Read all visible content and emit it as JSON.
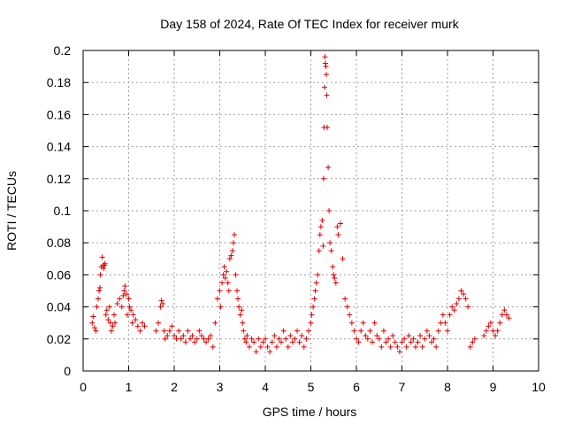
{
  "chart_data": {
    "type": "scatter",
    "title": "Day 158 of 2024, Rate Of TEC Index for receiver murk",
    "xlabel": "GPS time / hours",
    "ylabel": "ROTI / TECUs",
    "xlim": [
      0,
      10
    ],
    "ylim": [
      0,
      0.2
    ],
    "xticks": [
      0,
      1,
      2,
      3,
      4,
      5,
      6,
      7,
      8,
      9,
      10
    ],
    "yticks": [
      0,
      0.02,
      0.04,
      0.06,
      0.08,
      0.1,
      0.12,
      0.14,
      0.16,
      0.18,
      0.2
    ],
    "xtick_labels": [
      "0",
      "1",
      "2",
      "3",
      "4",
      "5",
      "6",
      "7",
      "8",
      "9",
      "10"
    ],
    "ytick_labels": [
      "0",
      "0.02",
      "0.04",
      "0.06",
      "0.08",
      "0.1",
      "0.12",
      "0.14",
      "0.16",
      "0.18",
      "0.2"
    ],
    "grid": true,
    "marker": "+",
    "color": "#e00000",
    "series": [
      {
        "name": "ROTI",
        "x": [
          0.2,
          0.22,
          0.25,
          0.28,
          0.3,
          0.33,
          0.35,
          0.37,
          0.38,
          0.4,
          0.42,
          0.44,
          0.45,
          0.47,
          0.48,
          0.5,
          0.52,
          0.55,
          0.58,
          0.6,
          0.62,
          0.65,
          0.68,
          0.7,
          0.75,
          0.8,
          0.85,
          0.88,
          0.9,
          0.92,
          0.95,
          0.97,
          1.0,
          1.02,
          1.05,
          1.08,
          1.1,
          1.15,
          1.2,
          1.25,
          1.3,
          1.35,
          1.6,
          1.65,
          1.7,
          1.72,
          1.75,
          1.78,
          1.8,
          1.85,
          1.9,
          1.95,
          2.0,
          2.05,
          2.1,
          2.15,
          2.2,
          2.25,
          2.3,
          2.35,
          2.4,
          2.45,
          2.5,
          2.55,
          2.6,
          2.65,
          2.7,
          2.75,
          2.8,
          2.85,
          2.9,
          2.95,
          3.0,
          3.02,
          3.05,
          3.08,
          3.1,
          3.12,
          3.15,
          3.18,
          3.2,
          3.22,
          3.25,
          3.28,
          3.3,
          3.32,
          3.35,
          3.38,
          3.4,
          3.42,
          3.45,
          3.48,
          3.5,
          3.52,
          3.55,
          3.58,
          3.6,
          3.65,
          3.7,
          3.75,
          3.8,
          3.85,
          3.9,
          3.95,
          4.0,
          4.05,
          4.1,
          4.15,
          4.2,
          4.25,
          4.3,
          4.35,
          4.4,
          4.45,
          4.5,
          4.55,
          4.6,
          4.65,
          4.7,
          4.75,
          4.8,
          4.85,
          4.9,
          4.95,
          5.0,
          5.02,
          5.05,
          5.08,
          5.1,
          5.12,
          5.15,
          5.18,
          5.2,
          5.22,
          5.25,
          5.27,
          5.28,
          5.29,
          5.3,
          5.31,
          5.32,
          5.33,
          5.34,
          5.35,
          5.36,
          5.38,
          5.4,
          5.42,
          5.45,
          5.48,
          5.5,
          5.52,
          5.55,
          5.58,
          5.6,
          5.65,
          5.7,
          5.75,
          5.8,
          5.85,
          5.9,
          5.95,
          6.0,
          6.05,
          6.1,
          6.15,
          6.2,
          6.25,
          6.3,
          6.35,
          6.4,
          6.45,
          6.5,
          6.55,
          6.6,
          6.65,
          6.7,
          6.75,
          6.8,
          6.85,
          6.9,
          6.95,
          7.0,
          7.05,
          7.1,
          7.15,
          7.2,
          7.25,
          7.3,
          7.35,
          7.4,
          7.45,
          7.5,
          7.55,
          7.6,
          7.65,
          7.7,
          7.75,
          7.8,
          7.85,
          7.9,
          7.95,
          8.0,
          8.05,
          8.1,
          8.15,
          8.2,
          8.25,
          8.3,
          8.35,
          8.4,
          8.45,
          8.5,
          8.55,
          8.6,
          8.8,
          8.85,
          8.9,
          8.95,
          9.0,
          9.05,
          9.1,
          9.15,
          9.2,
          9.25,
          9.3,
          9.35
        ],
        "y": [
          0.03,
          0.034,
          0.027,
          0.025,
          0.04,
          0.045,
          0.05,
          0.052,
          0.06,
          0.065,
          0.071,
          0.066,
          0.064,
          0.066,
          0.067,
          0.035,
          0.038,
          0.032,
          0.04,
          0.03,
          0.025,
          0.028,
          0.035,
          0.03,
          0.042,
          0.045,
          0.04,
          0.047,
          0.05,
          0.053,
          0.048,
          0.035,
          0.045,
          0.04,
          0.038,
          0.03,
          0.035,
          0.032,
          0.028,
          0.025,
          0.03,
          0.028,
          0.025,
          0.03,
          0.04,
          0.044,
          0.042,
          0.025,
          0.02,
          0.022,
          0.025,
          0.028,
          0.022,
          0.02,
          0.025,
          0.02,
          0.022,
          0.018,
          0.025,
          0.02,
          0.022,
          0.018,
          0.02,
          0.025,
          0.022,
          0.02,
          0.018,
          0.02,
          0.022,
          0.015,
          0.03,
          0.045,
          0.05,
          0.04,
          0.055,
          0.06,
          0.065,
          0.058,
          0.062,
          0.055,
          0.05,
          0.07,
          0.072,
          0.075,
          0.08,
          0.085,
          0.06,
          0.05,
          0.045,
          0.04,
          0.035,
          0.038,
          0.03,
          0.025,
          0.02,
          0.018,
          0.022,
          0.015,
          0.02,
          0.018,
          0.012,
          0.02,
          0.015,
          0.018,
          0.02,
          0.015,
          0.012,
          0.018,
          0.022,
          0.015,
          0.02,
          0.018,
          0.025,
          0.02,
          0.015,
          0.022,
          0.018,
          0.02,
          0.025,
          0.018,
          0.022,
          0.015,
          0.02,
          0.025,
          0.03,
          0.035,
          0.04,
          0.045,
          0.05,
          0.055,
          0.06,
          0.075,
          0.085,
          0.09,
          0.094,
          0.078,
          0.12,
          0.152,
          0.177,
          0.196,
          0.192,
          0.19,
          0.185,
          0.172,
          0.152,
          0.127,
          0.1,
          0.08,
          0.075,
          0.065,
          0.06,
          0.058,
          0.055,
          0.09,
          0.085,
          0.092,
          0.07,
          0.045,
          0.04,
          0.035,
          0.03,
          0.025,
          0.02,
          0.018,
          0.025,
          0.03,
          0.022,
          0.02,
          0.025,
          0.018,
          0.03,
          0.022,
          0.02,
          0.015,
          0.025,
          0.018,
          0.02,
          0.015,
          0.022,
          0.018,
          0.015,
          0.012,
          0.018,
          0.02,
          0.015,
          0.022,
          0.018,
          0.02,
          0.015,
          0.018,
          0.022,
          0.015,
          0.02,
          0.025,
          0.022,
          0.018,
          0.02,
          0.015,
          0.025,
          0.03,
          0.035,
          0.03,
          0.025,
          0.035,
          0.04,
          0.038,
          0.042,
          0.045,
          0.05,
          0.048,
          0.045,
          0.04,
          0.015,
          0.018,
          0.02,
          0.022,
          0.025,
          0.028,
          0.03,
          0.025,
          0.022,
          0.025,
          0.03,
          0.035,
          0.038,
          0.035,
          0.033
        ]
      }
    ]
  }
}
